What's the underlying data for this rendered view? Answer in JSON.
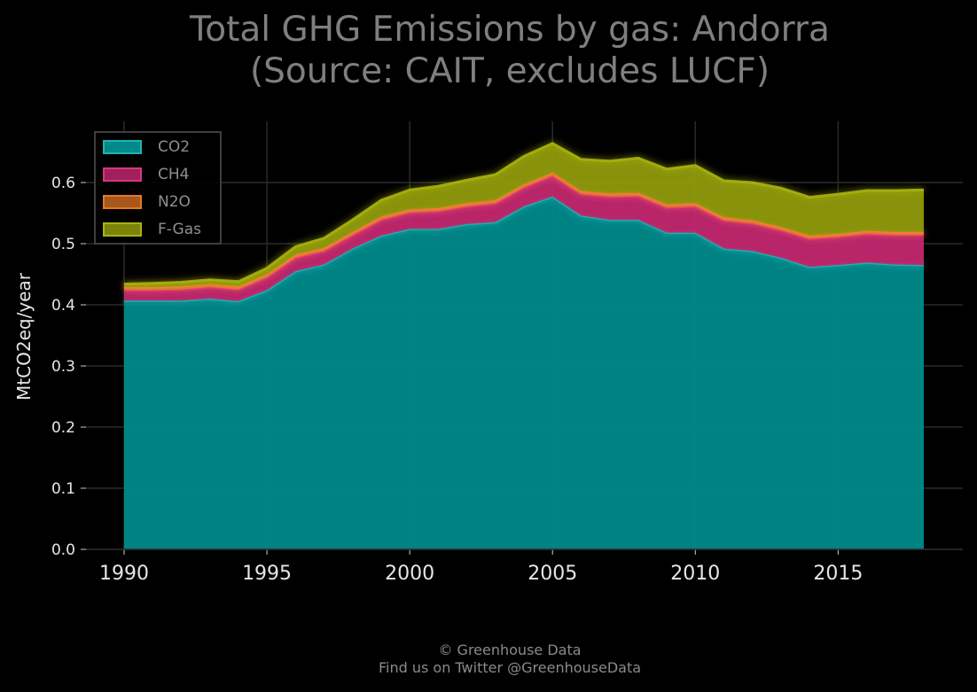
{
  "title_line1": "Total GHG Emissions by gas: Andorra",
  "title_line2": "(Source: CAIT, excludes LUCF)",
  "footer_line1": "© Greenhouse Data",
  "footer_line2": "Find us on Twitter @GreenhouseData",
  "colors": {
    "background": "#000000",
    "grid": "#2a2a2a",
    "CO2": "#00898a",
    "CH4": "#c2276e",
    "N2O": "#e0792a",
    "F-Gas": "#8f9a0c"
  },
  "chart_data": {
    "type": "area",
    "stacked": true,
    "ylabel": "MtCO2eq/year",
    "xlabel": "",
    "xlim": [
      1990,
      2018
    ],
    "ylim": [
      0,
      0.7
    ],
    "xticks": [
      1990,
      1995,
      2000,
      2005,
      2010,
      2015
    ],
    "yticks": [
      0.0,
      0.1,
      0.2,
      0.3,
      0.4,
      0.5,
      0.6
    ],
    "ytick_labels": [
      "0.0",
      "0.1",
      "0.2",
      "0.3",
      "0.4",
      "0.5",
      "0.6"
    ],
    "grid": true,
    "legend_position": "upper-left",
    "x": [
      1990,
      1991,
      1992,
      1993,
      1994,
      1995,
      1996,
      1997,
      1998,
      1999,
      2000,
      2001,
      2002,
      2003,
      2004,
      2005,
      2006,
      2007,
      2008,
      2009,
      2010,
      2011,
      2012,
      2013,
      2014,
      2015,
      2016,
      2017,
      2018
    ],
    "series": [
      {
        "name": "CO2",
        "values": [
          0.407,
          0.407,
          0.407,
          0.41,
          0.406,
          0.424,
          0.455,
          0.466,
          0.492,
          0.513,
          0.524,
          0.524,
          0.532,
          0.535,
          0.561,
          0.577,
          0.546,
          0.539,
          0.539,
          0.518,
          0.518,
          0.492,
          0.488,
          0.477,
          0.462,
          0.465,
          0.469,
          0.466,
          0.465
        ]
      },
      {
        "name": "CH4",
        "values": [
          0.017,
          0.017,
          0.018,
          0.019,
          0.019,
          0.021,
          0.022,
          0.022,
          0.022,
          0.026,
          0.027,
          0.029,
          0.029,
          0.031,
          0.031,
          0.034,
          0.035,
          0.038,
          0.039,
          0.041,
          0.043,
          0.046,
          0.045,
          0.045,
          0.046,
          0.046,
          0.047,
          0.048,
          0.049
        ]
      },
      {
        "name": "N2O",
        "values": [
          0.005,
          0.005,
          0.005,
          0.005,
          0.005,
          0.005,
          0.005,
          0.005,
          0.005,
          0.005,
          0.005,
          0.005,
          0.005,
          0.005,
          0.005,
          0.005,
          0.005,
          0.005,
          0.005,
          0.005,
          0.005,
          0.005,
          0.005,
          0.005,
          0.005,
          0.005,
          0.005,
          0.005,
          0.005
        ]
      },
      {
        "name": "F-Gas",
        "values": [
          0.005,
          0.006,
          0.007,
          0.007,
          0.008,
          0.01,
          0.013,
          0.016,
          0.02,
          0.027,
          0.032,
          0.036,
          0.038,
          0.042,
          0.046,
          0.048,
          0.052,
          0.053,
          0.057,
          0.058,
          0.062,
          0.06,
          0.062,
          0.064,
          0.063,
          0.065,
          0.066,
          0.068,
          0.069
        ]
      }
    ]
  }
}
